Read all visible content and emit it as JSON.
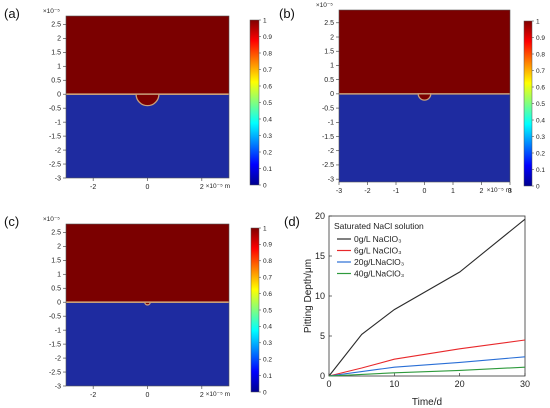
{
  "colormap": {
    "top_color": "#7b0000",
    "bottom_color": "#1e2ba0",
    "interface_color": "#c9a07a",
    "stops": [
      "#00008f",
      "#0000ff",
      "#0080ff",
      "#00ffff",
      "#80ff80",
      "#ffff00",
      "#ff8000",
      "#ff0000",
      "#800000"
    ]
  },
  "chart_data": [
    {
      "type": "heatmap",
      "panel_label": "(a)",
      "x_ticks": [
        "-2",
        "0",
        "2"
      ],
      "x_unit": "×10⁻⁵ m",
      "y_ticks": [
        "2.5",
        "2",
        "1.5",
        "1",
        "0.5",
        "0",
        "-0.5",
        "-1",
        "-1.5",
        "-2",
        "-2.5",
        "-3"
      ],
      "y_exponent": "×10⁻⁵",
      "xlim": [
        -3,
        3
      ],
      "ylim": [
        -3,
        2.8
      ],
      "colorbar_ticks": [
        "1",
        "0.9",
        "0.8",
        "0.7",
        "0.6",
        "0.5",
        "0.4",
        "0.3",
        "0.2",
        "0.1",
        "0"
      ],
      "interface_y": 0,
      "pit": {
        "x_center": 0,
        "radius": 0.42
      }
    },
    {
      "type": "heatmap",
      "panel_label": "(b)",
      "x_ticks": [
        "-3",
        "-2",
        "-1",
        "0",
        "1",
        "2",
        "3"
      ],
      "x_unit": "×10⁻⁵ m",
      "y_ticks": [
        "2.5",
        "2",
        "1.5",
        "1",
        "0.5",
        "0",
        "-0.5",
        "-1",
        "-1.5",
        "-2",
        "-2.5",
        "-3"
      ],
      "y_exponent": "×10⁻⁵",
      "xlim": [
        -3,
        3
      ],
      "ylim": [
        -3.1,
        2.95
      ],
      "colorbar_ticks": [
        "1",
        "0.9",
        "0.8",
        "0.7",
        "0.6",
        "0.5",
        "0.4",
        "0.3",
        "0.2",
        "0.1",
        "0"
      ],
      "interface_y": 0,
      "pit": {
        "x_center": 0,
        "radius": 0.22
      }
    },
    {
      "type": "heatmap",
      "panel_label": "(c)",
      "x_ticks": [
        "-2",
        "0",
        "2"
      ],
      "x_unit": "×10⁻⁵ m",
      "y_ticks": [
        "2.5",
        "2",
        "1.5",
        "1",
        "0.5",
        "0",
        "-0.5",
        "-1",
        "-1.5",
        "-2",
        "-2.5",
        "-3"
      ],
      "y_exponent": "×10⁻⁵",
      "xlim": [
        -3,
        3
      ],
      "ylim": [
        -3,
        2.8
      ],
      "colorbar_ticks": [
        "1",
        "0.9",
        "0.8",
        "0.7",
        "0.6",
        "0.5",
        "0.4",
        "0.3",
        "0.2",
        "0.1",
        "0"
      ],
      "interface_y": 0,
      "pit": {
        "x_center": 0,
        "radius": 0.1
      }
    },
    {
      "type": "line",
      "panel_label": "(d)",
      "xlabel": "Time/d",
      "ylabel": "Pitting Depth/μm",
      "xlim": [
        0,
        30
      ],
      "ylim": [
        0,
        20
      ],
      "x_ticks": [
        0,
        10,
        20,
        30
      ],
      "y_ticks": [
        0,
        5,
        10,
        15,
        20
      ],
      "legend_title": "Saturated NaCl solution",
      "legend_position": "top-left",
      "series": [
        {
          "name": "0g/L  NaClO₃",
          "color": "#2b2b2b",
          "x": [
            0,
            5,
            10,
            20,
            30
          ],
          "y": [
            0,
            5.2,
            8.3,
            13.0,
            19.6
          ]
        },
        {
          "name": "6g/L  NaClO₃",
          "color": "#e8282b",
          "x": [
            0,
            5,
            10,
            20,
            30
          ],
          "y": [
            0,
            1.0,
            2.1,
            3.4,
            4.5
          ]
        },
        {
          "name": "20g/LNaClO₃",
          "color": "#2a6fd6",
          "x": [
            0,
            5,
            10,
            20,
            30
          ],
          "y": [
            0,
            0.55,
            1.1,
            1.7,
            2.4
          ]
        },
        {
          "name": "40g/LNaClO₃",
          "color": "#2e9a3c",
          "x": [
            0,
            5,
            10,
            20,
            30
          ],
          "y": [
            0,
            0.2,
            0.4,
            0.7,
            1.1
          ]
        }
      ]
    }
  ]
}
